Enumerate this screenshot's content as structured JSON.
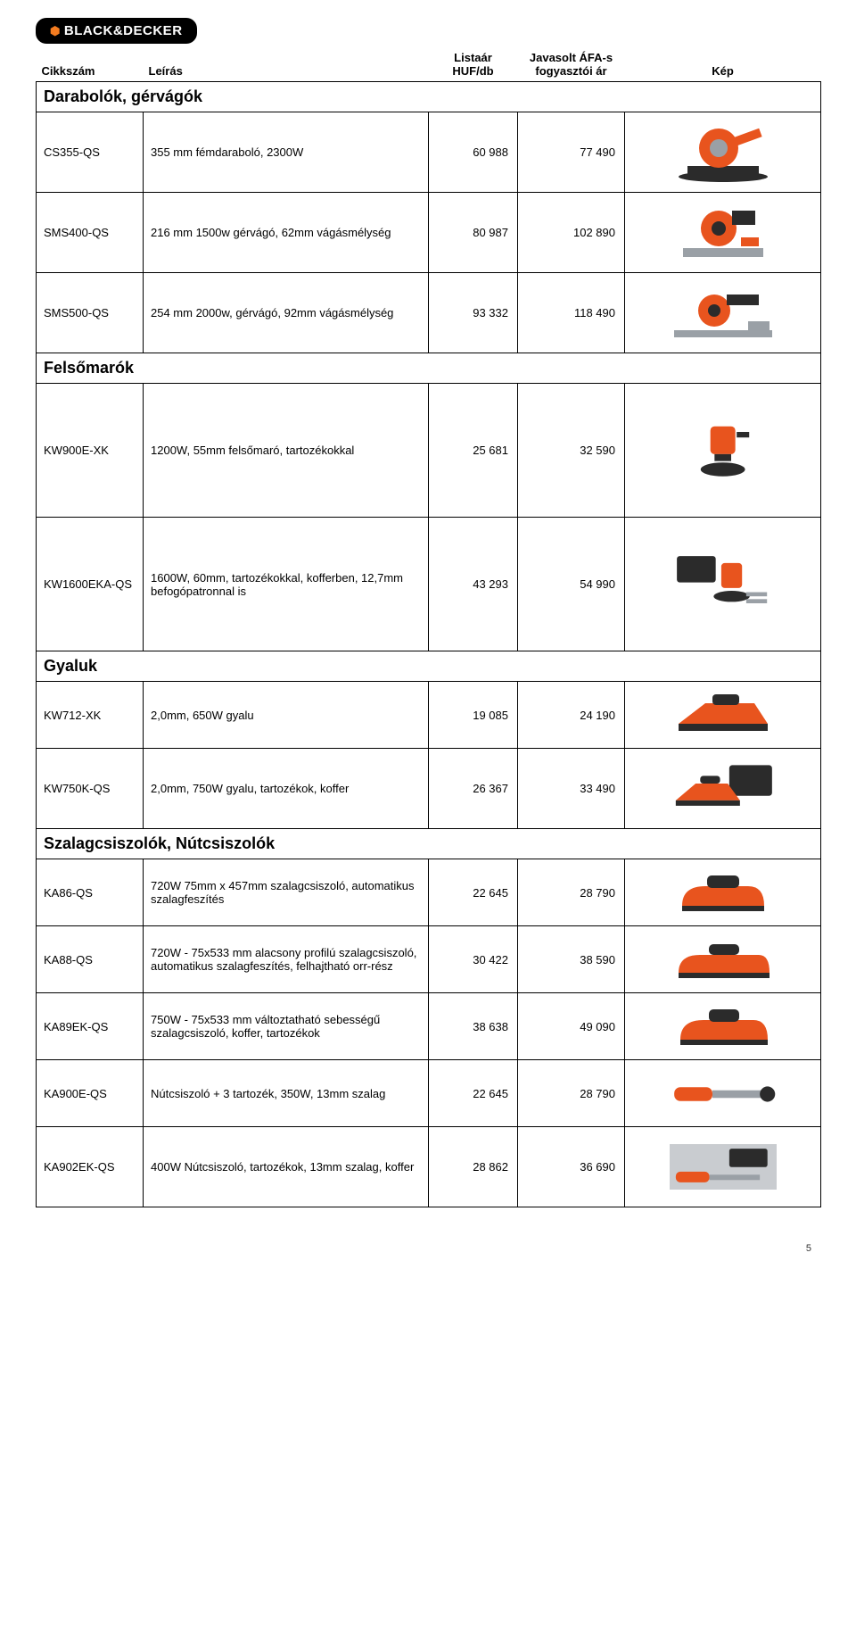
{
  "brand": "BLACK&DECKER",
  "headers": {
    "sku": "Cikkszám",
    "desc": "Leírás",
    "price1_l1": "Listaár",
    "price1_l2": "HUF/db",
    "price2_l1": "Javasolt ÁFA-s",
    "price2_l2": "fogyasztói ár",
    "img": "Kép"
  },
  "sections": [
    {
      "title": "Darabolók, gérvágók",
      "rows": [
        {
          "sku": "CS355-QS",
          "desc": "355 mm fémdaraboló, 2300W",
          "p1": "60 988",
          "p2": "77 490",
          "h": "data",
          "icon": "chopsaw"
        },
        {
          "sku": "SMS400-QS",
          "desc": "216 mm 1500w gérvágó, 62mm vágásmélység",
          "p1": "80 987",
          "p2": "102 890",
          "h": "data",
          "icon": "mitersaw"
        },
        {
          "sku": "SMS500-QS",
          "desc": "254 mm 2000w, gérvágó, 92mm vágásmélység",
          "p1": "93 332",
          "p2": "118 490",
          "h": "data",
          "icon": "mitersaw2"
        }
      ]
    },
    {
      "title": "Felsőmarók",
      "rows": [
        {
          "sku": "KW900E-XK",
          "desc": "1200W, 55mm felsőmaró, tartozékokkal",
          "p1": "25 681",
          "p2": "32 590",
          "h": "tall",
          "icon": "router"
        },
        {
          "sku": "KW1600EKA-QS",
          "desc": "1600W, 60mm, tartozékokkal, kofferben, 12,7mm befogópatronnal is",
          "p1": "43 293",
          "p2": "54 990",
          "h": "tall",
          "icon": "routerkit"
        }
      ]
    },
    {
      "title": "Gyaluk",
      "rows": [
        {
          "sku": "KW712-XK",
          "desc": "2,0mm, 650W gyalu",
          "p1": "19 085",
          "p2": "24 190",
          "h": "short",
          "icon": "planer"
        },
        {
          "sku": "KW750K-QS",
          "desc": "2,0mm, 750W gyalu, tartozékok, koffer",
          "p1": "26 367",
          "p2": "33 490",
          "h": "data",
          "icon": "planerkit"
        }
      ]
    },
    {
      "title": "Szalagcsiszolók, Nútcsiszolók",
      "rows": [
        {
          "sku": "KA86-QS",
          "desc": "720W 75mm x 457mm szalagcsiszoló, automatikus szalagfeszítés",
          "p1": "22 645",
          "p2": "28 790",
          "h": "short",
          "icon": "beltsander"
        },
        {
          "sku": "KA88-QS",
          "desc": "720W - 75x533 mm alacsony profilú szalagcsiszoló, automatikus szalagfeszítés, felhajtható orr-rész",
          "p1": "30 422",
          "p2": "38 590",
          "h": "short",
          "icon": "beltsander2"
        },
        {
          "sku": "KA89EK-QS",
          "desc": "750W - 75x533 mm változtatható sebességű szalagcsiszoló, koffer, tartozékok",
          "p1": "38 638",
          "p2": "49 090",
          "h": "short",
          "icon": "beltsander3"
        },
        {
          "sku": "KA900E-QS",
          "desc": "Nútcsiszoló + 3 tartozék, 350W, 13mm szalag",
          "p1": "22 645",
          "p2": "28 790",
          "h": "short",
          "icon": "filesander"
        },
        {
          "sku": "KA902EK-QS",
          "desc": "400W Nútcsiszoló, tartozékok, 13mm szalag, koffer",
          "p1": "28 862",
          "p2": "36 690",
          "h": "data",
          "icon": "filesanderkit"
        }
      ]
    }
  ],
  "page_number": "5",
  "colors": {
    "tool_orange": "#e8541e",
    "tool_dark": "#2b2b2b",
    "tool_grey": "#9aa0a6",
    "logo_bg": "#000000",
    "logo_accent": "#f47c20"
  }
}
